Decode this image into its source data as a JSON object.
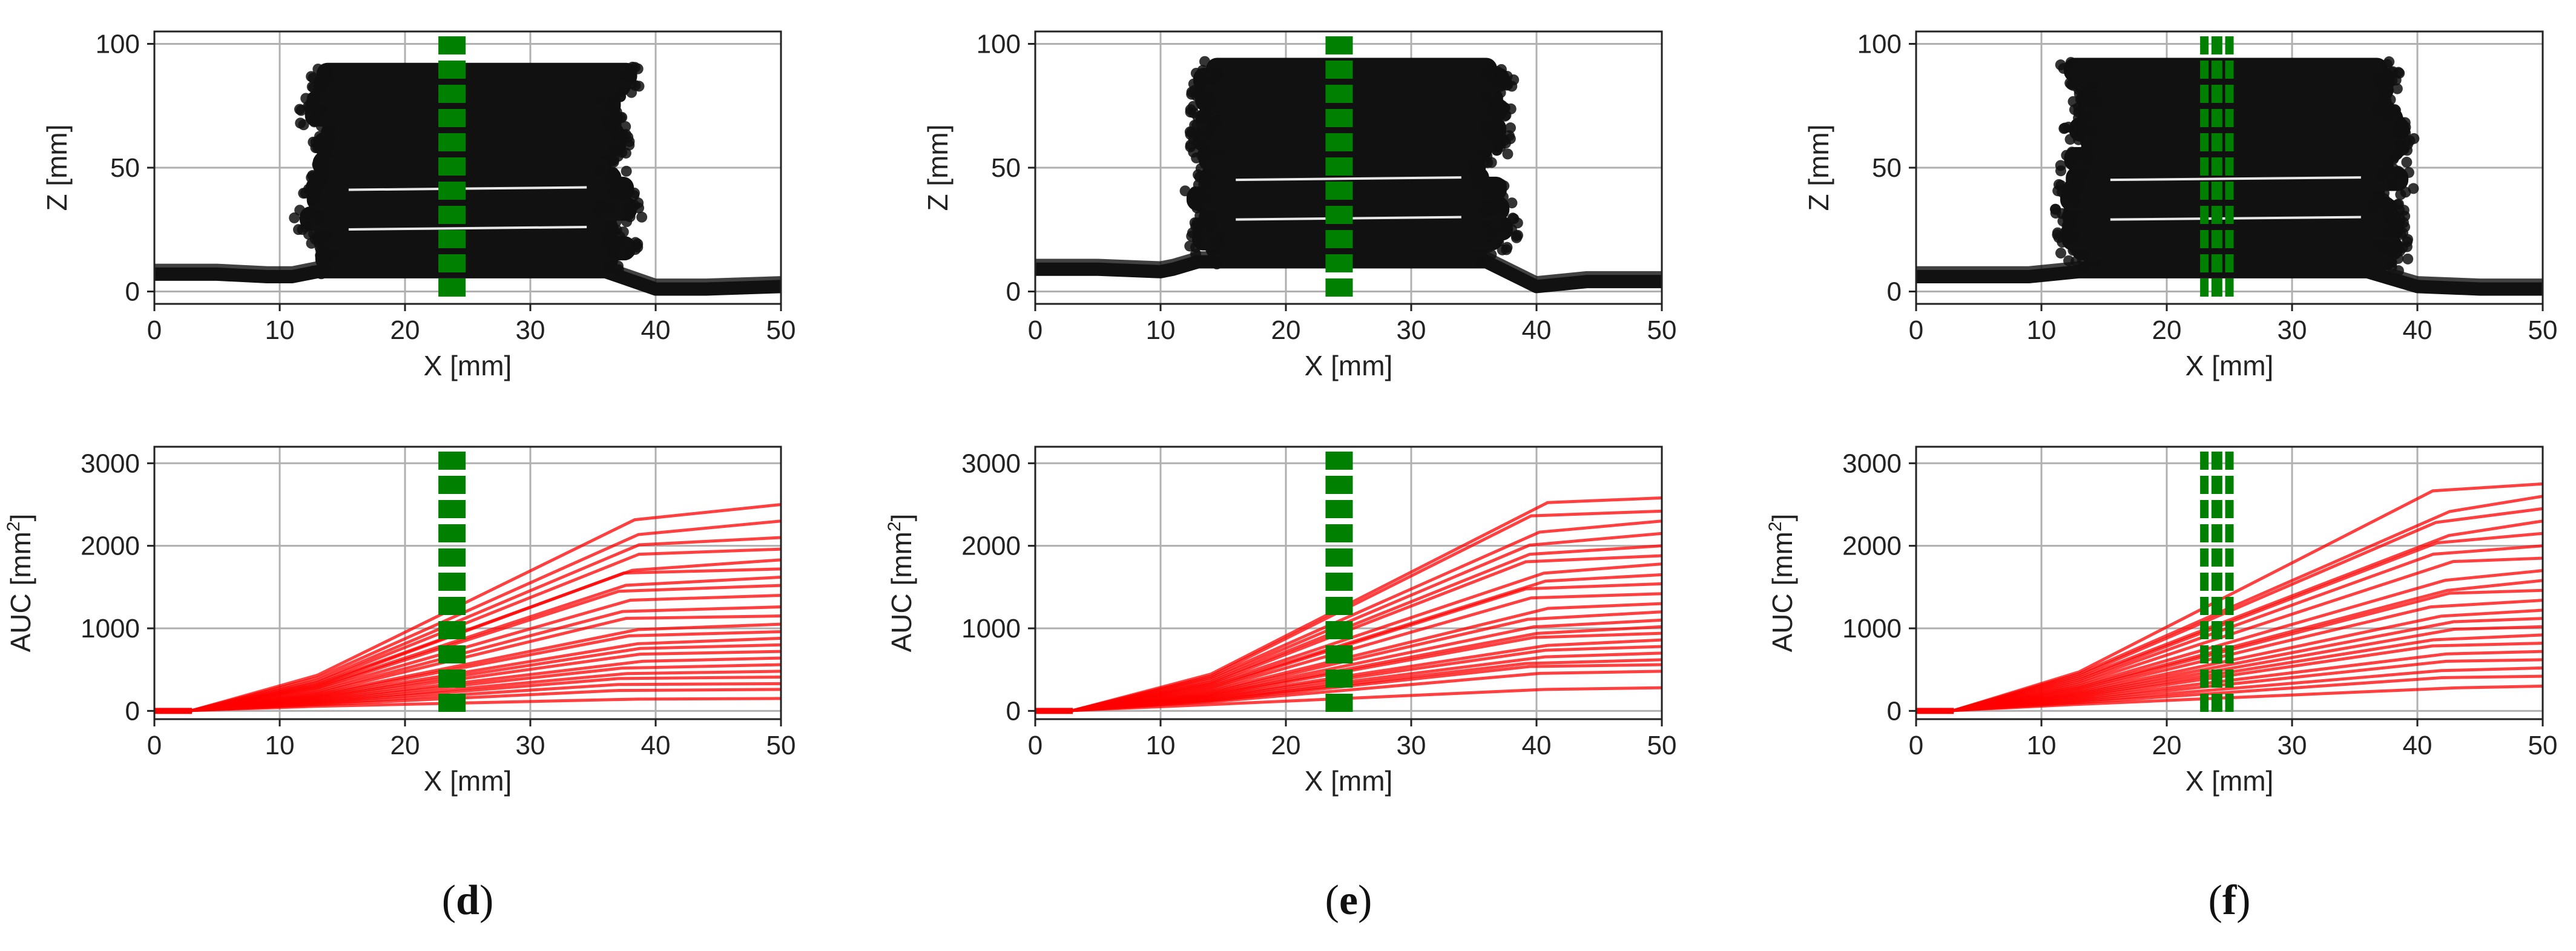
{
  "colors": {
    "scan_points": "#111111",
    "auc_curves": "#ff0000",
    "marker_lines": "#008000",
    "grid": "#b0b0b0"
  },
  "panels": [
    {
      "label_open": "(",
      "label_letter": "d",
      "label_close": ")",
      "charts": [
        {
          "type": "scatter",
          "xlabel": "X [mm]",
          "ylabel": "Z [mm]",
          "xlim": [
            0,
            50
          ],
          "ylim": [
            -5,
            105
          ],
          "xticks": [
            "0",
            "10",
            "20",
            "30",
            "40",
            "50"
          ],
          "yticks": [
            "0",
            "50",
            "100"
          ],
          "grid": true,
          "points_color": "#111111",
          "baseline_before": [
            [
              0,
              7
            ],
            [
              5,
              7
            ],
            [
              9,
              6
            ],
            [
              11,
              6
            ],
            [
              13,
              8
            ],
            [
              36,
              8
            ],
            [
              40,
              1
            ],
            [
              44,
              1
            ],
            [
              50,
              2
            ]
          ],
          "layers_z": [
            12,
            16,
            20,
            24,
            28,
            32,
            36,
            40,
            44,
            50,
            54,
            58,
            62,
            66,
            70,
            74,
            78,
            82,
            86
          ],
          "block_x_range": [
            12.5,
            37.5
          ],
          "vertical_markers_x": [
            23,
            24.5
          ]
        },
        {
          "type": "line",
          "xlabel": "X [mm]",
          "ylabel": "AUC [mm",
          "ylabel_sup": "2",
          "ylabel_close": "]",
          "xlim": [
            0,
            50
          ],
          "ylim": [
            -100,
            3200
          ],
          "xticks": [
            "0",
            "10",
            "20",
            "30",
            "40",
            "50"
          ],
          "yticks": [
            "0",
            "1000",
            "2000",
            "3000"
          ],
          "grid": true,
          "line_color": "#ff0000",
          "curve_start_x": 3,
          "knee1_x": 13,
          "knee2_x": 38,
          "final_values": [
            150,
            260,
            330,
            410,
            480,
            560,
            640,
            720,
            800,
            880,
            960,
            1050,
            1150,
            1260,
            1400,
            1520,
            1620,
            1720,
            1830,
            1960,
            2100,
            2300,
            2500
          ],
          "vertical_markers_x": [
            23,
            24.5
          ]
        }
      ]
    },
    {
      "label_open": "(",
      "label_letter": "e",
      "label_close": ")",
      "charts": [
        {
          "type": "scatter",
          "xlabel": "X [mm]",
          "ylabel": "Z [mm]",
          "xlim": [
            0,
            50
          ],
          "ylim": [
            -5,
            105
          ],
          "xticks": [
            "0",
            "10",
            "20",
            "30",
            "40",
            "50"
          ],
          "yticks": [
            "0",
            "50",
            "100"
          ],
          "grid": true,
          "points_color": "#111111",
          "baseline_before": [
            [
              0,
              9
            ],
            [
              5,
              9
            ],
            [
              10,
              8
            ],
            [
              11,
              9
            ],
            [
              13,
              12
            ],
            [
              36,
              12
            ],
            [
              40,
              2
            ],
            [
              44,
              4
            ],
            [
              50,
              4
            ]
          ],
          "layers_z": [
            16,
            20,
            24,
            28,
            32,
            36,
            40,
            44,
            48,
            52,
            56,
            60,
            64,
            68,
            72,
            76,
            80,
            84,
            88
          ],
          "block_x_range": [
            13,
            37
          ],
          "vertical_markers_x": [
            23.5,
            25
          ]
        },
        {
          "type": "line",
          "xlabel": "X [mm]",
          "ylabel": "AUC [mm",
          "ylabel_sup": "2",
          "ylabel_close": "]",
          "xlim": [
            0,
            50
          ],
          "ylim": [
            -100,
            3200
          ],
          "xticks": [
            "0",
            "10",
            "20",
            "30",
            "40",
            "50"
          ],
          "yticks": [
            "0",
            "1000",
            "2000",
            "3000"
          ],
          "grid": true,
          "line_color": "#ff0000",
          "curve_start_x": 3,
          "knee1_x": 14,
          "knee2_x": 40,
          "final_values": [
            280,
            480,
            560,
            620,
            700,
            780,
            860,
            940,
            1020,
            1100,
            1200,
            1300,
            1420,
            1540,
            1650,
            1780,
            1880,
            2000,
            2150,
            2300,
            2420,
            2580
          ],
          "vertical_markers_x": [
            23.5,
            25
          ]
        }
      ]
    },
    {
      "label_open": "(",
      "label_letter": "f",
      "label_close": ")",
      "charts": [
        {
          "type": "scatter",
          "xlabel": "X [mm]",
          "ylabel": "Z [mm]",
          "xlim": [
            0,
            50
          ],
          "ylim": [
            -5,
            105
          ],
          "xticks": [
            "0",
            "10",
            "20",
            "30",
            "40",
            "50"
          ],
          "yticks": [
            "0",
            "50",
            "100"
          ],
          "grid": true,
          "points_color": "#111111",
          "baseline_before": [
            [
              0,
              6
            ],
            [
              5,
              6
            ],
            [
              9,
              6
            ],
            [
              11,
              7
            ],
            [
              13,
              8
            ],
            [
              36,
              8
            ],
            [
              40,
              2
            ],
            [
              45,
              1
            ],
            [
              50,
              1
            ]
          ],
          "layers_z": [
            12,
            16,
            20,
            24,
            28,
            32,
            36,
            40,
            44,
            48,
            52,
            56,
            60,
            64,
            68,
            72,
            76,
            80,
            84,
            88
          ],
          "block_x_range": [
            12.5,
            38.5
          ],
          "vertical_markers_x": [
            23,
            25
          ]
        },
        {
          "type": "line",
          "xlabel": "X [mm]",
          "ylabel": "AUC [mm",
          "ylabel_sup": "2",
          "ylabel_close": "]",
          "xlim": [
            0,
            50
          ],
          "ylim": [
            -100,
            3200
          ],
          "xticks": [
            "0",
            "10",
            "20",
            "30",
            "40",
            "50"
          ],
          "yticks": [
            "0",
            "1000",
            "2000",
            "3000"
          ],
          "grid": true,
          "line_color": "#ff0000",
          "curve_start_x": 3,
          "knee1_x": 13,
          "knee2_x": 42,
          "final_values": [
            300,
            420,
            520,
            620,
            720,
            820,
            920,
            1020,
            1120,
            1220,
            1340,
            1460,
            1580,
            1700,
            1850,
            2000,
            2150,
            2300,
            2450,
            2600,
            2750
          ],
          "vertical_markers_x": [
            23,
            25
          ]
        }
      ]
    }
  ]
}
